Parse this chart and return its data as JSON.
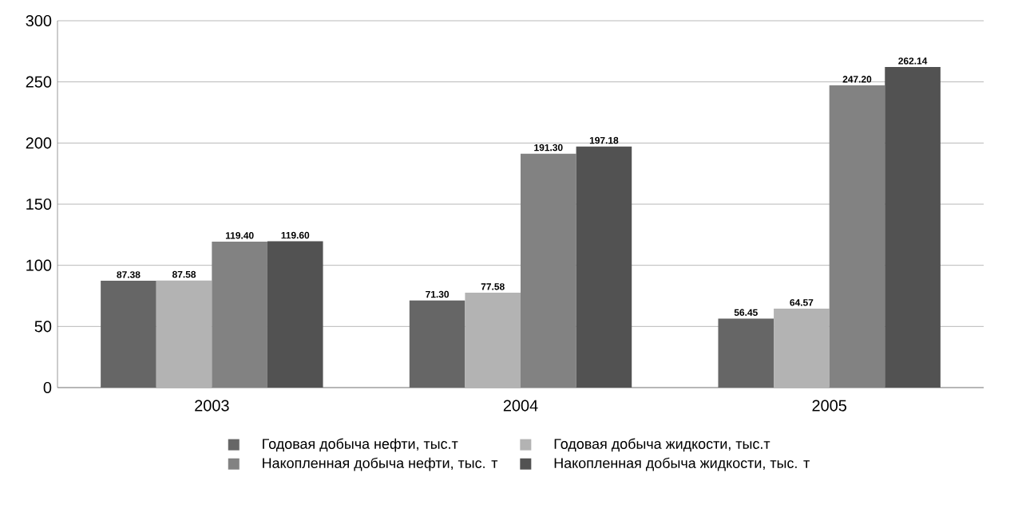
{
  "chart_data": {
    "type": "bar",
    "categories": [
      "2003",
      "2004",
      "2005"
    ],
    "series": [
      {
        "name": "Годовая добыча нефти, тыс.т",
        "color": "#666666",
        "values": [
          87.38,
          71.3,
          56.45
        ],
        "value_labels": [
          "87.38",
          "71.30",
          "56.45"
        ]
      },
      {
        "name": "Годовая добыча жидкости, тыс.т",
        "color": "#b3b3b3",
        "values": [
          87.58,
          77.58,
          64.57
        ],
        "value_labels": [
          "87.58",
          "77.58",
          "64.57"
        ]
      },
      {
        "name": "Накопленная добыча нефти, тыс. т",
        "color": "#828282",
        "values": [
          119.4,
          191.3,
          247.2
        ],
        "value_labels": [
          "119.40",
          "191.30",
          "247.20"
        ]
      },
      {
        "name": "Накопленная добыча жидкости, тыс. т",
        "color": "#525252",
        "values": [
          119.6,
          197.18,
          262.14
        ],
        "value_labels": [
          "119.60",
          "197.18",
          "262.14"
        ]
      }
    ],
    "ylim": [
      0,
      300
    ],
    "yticks": [
      0,
      50,
      100,
      150,
      200,
      250,
      300
    ],
    "grid": "y",
    "legend": "bottom"
  }
}
